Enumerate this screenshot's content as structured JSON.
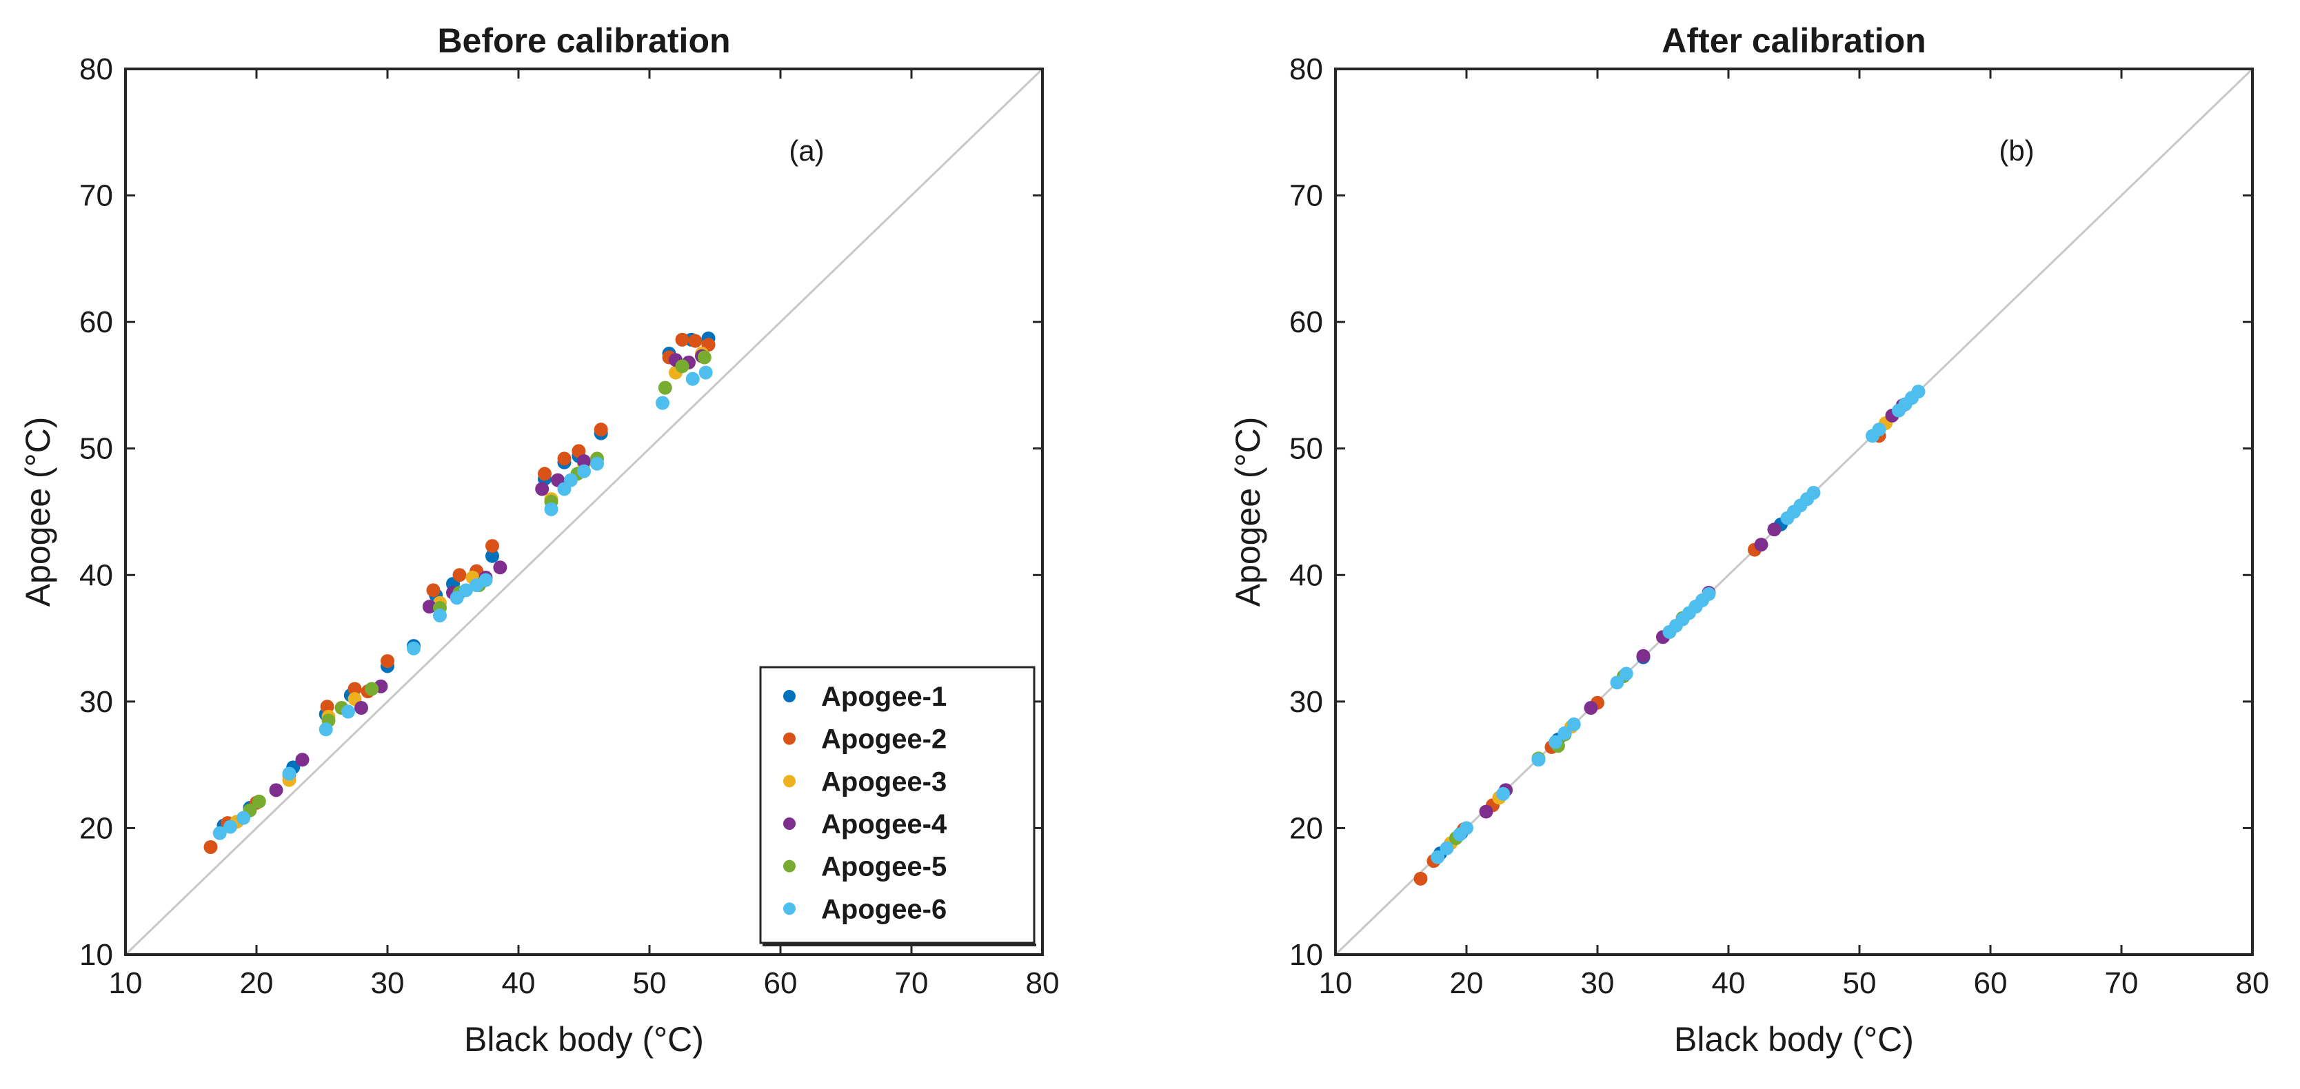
{
  "chart_data": [
    {
      "type": "scatter",
      "title": "Before calibration",
      "panel_label": "(a)",
      "xlabel": "Black body (°C)",
      "ylabel": "Apogee (°C)",
      "xlim": [
        10,
        80
      ],
      "ylim": [
        10,
        80
      ],
      "xticks": [
        10,
        20,
        30,
        40,
        50,
        60,
        70,
        80
      ],
      "yticks": [
        10,
        20,
        30,
        40,
        50,
        60,
        70,
        80
      ],
      "reference_line": "1:1",
      "legend_location": "bottom-right",
      "series": [
        {
          "name": "Apogee-1",
          "color": "#0072BD",
          "points": [
            [
              17.5,
              20.2
            ],
            [
              19.5,
              21.6
            ],
            [
              22.8,
              24.8
            ],
            [
              25.3,
              29.0
            ],
            [
              27.2,
              30.5
            ],
            [
              30.0,
              32.8
            ],
            [
              32.0,
              34.4
            ],
            [
              33.7,
              38.4
            ],
            [
              35.0,
              39.3
            ],
            [
              36.8,
              40.3
            ],
            [
              38.0,
              41.5
            ],
            [
              42.0,
              47.6
            ],
            [
              43.5,
              48.9
            ],
            [
              44.6,
              49.4
            ],
            [
              46.3,
              51.2
            ],
            [
              51.5,
              57.5
            ],
            [
              53.2,
              58.6
            ],
            [
              54.5,
              58.7
            ]
          ]
        },
        {
          "name": "Apogee-2",
          "color": "#D95319",
          "points": [
            [
              16.5,
              18.5
            ],
            [
              17.8,
              20.4
            ],
            [
              20.0,
              22.0
            ],
            [
              22.5,
              24.2
            ],
            [
              25.4,
              29.6
            ],
            [
              27.5,
              31.0
            ],
            [
              28.5,
              30.8
            ],
            [
              30.0,
              33.2
            ],
            [
              33.5,
              38.8
            ],
            [
              35.5,
              40.0
            ],
            [
              36.8,
              40.3
            ],
            [
              38.0,
              42.3
            ],
            [
              42.0,
              48.0
            ],
            [
              43.5,
              49.2
            ],
            [
              44.6,
              49.8
            ],
            [
              46.3,
              51.5
            ],
            [
              51.5,
              57.2
            ],
            [
              52.5,
              58.6
            ],
            [
              53.5,
              58.5
            ],
            [
              54.5,
              58.2
            ]
          ]
        },
        {
          "name": "Apogee-3",
          "color": "#EDB120",
          "points": [
            [
              18.5,
              20.5
            ],
            [
              22.5,
              23.8
            ],
            [
              25.5,
              28.8
            ],
            [
              27.5,
              30.2
            ],
            [
              34.0,
              37.8
            ],
            [
              36.5,
              39.8
            ],
            [
              42.5,
              46.0
            ],
            [
              45.0,
              48.8
            ],
            [
              52.0,
              56.0
            ],
            [
              54.0,
              57.5
            ]
          ]
        },
        {
          "name": "Apogee-4",
          "color": "#7E2F8E",
          "points": [
            [
              21.5,
              23.0
            ],
            [
              23.5,
              25.4
            ],
            [
              28.0,
              29.5
            ],
            [
              29.5,
              31.2
            ],
            [
              33.2,
              37.5
            ],
            [
              35.0,
              38.6
            ],
            [
              37.5,
              39.8
            ],
            [
              38.6,
              40.6
            ],
            [
              41.8,
              46.8
            ],
            [
              43.0,
              47.5
            ],
            [
              45.0,
              49.0
            ],
            [
              52.0,
              57.0
            ],
            [
              53.0,
              56.8
            ],
            [
              54.0,
              57.3
            ]
          ]
        },
        {
          "name": "Apogee-5",
          "color": "#77AC30",
          "points": [
            [
              19.5,
              21.4
            ],
            [
              20.2,
              22.1
            ],
            [
              25.5,
              28.5
            ],
            [
              26.5,
              29.5
            ],
            [
              28.8,
              31.0
            ],
            [
              34.0,
              37.4
            ],
            [
              35.5,
              38.6
            ],
            [
              37.0,
              39.2
            ],
            [
              42.5,
              45.8
            ],
            [
              44.5,
              48.0
            ],
            [
              46.0,
              49.2
            ],
            [
              51.2,
              54.8
            ],
            [
              52.5,
              56.5
            ],
            [
              54.2,
              57.2
            ]
          ]
        },
        {
          "name": "Apogee-6",
          "color": "#4DBEEE",
          "points": [
            [
              17.2,
              19.6
            ],
            [
              18.0,
              20.1
            ],
            [
              19.0,
              20.8
            ],
            [
              22.5,
              24.3
            ],
            [
              25.3,
              27.8
            ],
            [
              27.0,
              29.2
            ],
            [
              32.0,
              34.2
            ],
            [
              34.0,
              36.8
            ],
            [
              35.3,
              38.2
            ],
            [
              36.0,
              38.8
            ],
            [
              36.8,
              39.2
            ],
            [
              37.5,
              39.6
            ],
            [
              42.5,
              45.2
            ],
            [
              43.5,
              46.8
            ],
            [
              44.0,
              47.5
            ],
            [
              45.0,
              48.2
            ],
            [
              46.0,
              48.8
            ],
            [
              51.0,
              53.6
            ],
            [
              53.3,
              55.5
            ],
            [
              54.3,
              56.0
            ]
          ]
        }
      ]
    },
    {
      "type": "scatter",
      "title": "After calibration",
      "panel_label": "(b)",
      "xlabel": "Black body (°C)",
      "ylabel": "Apogee (°C)",
      "xlim": [
        10,
        80
      ],
      "ylim": [
        10,
        80
      ],
      "xticks": [
        10,
        20,
        30,
        40,
        50,
        60,
        70,
        80
      ],
      "yticks": [
        10,
        20,
        30,
        40,
        50,
        60,
        70,
        80
      ],
      "reference_line": "1:1",
      "series": [
        {
          "name": "Apogee-1",
          "color": "#0072BD",
          "points": [
            [
              18.0,
              18.0
            ],
            [
              19.6,
              19.6
            ],
            [
              23.0,
              23.0
            ],
            [
              27.0,
              27.0
            ],
            [
              33.5,
              33.5
            ],
            [
              37.5,
              37.5
            ],
            [
              44.0,
              44.0
            ],
            [
              53.5,
              53.5
            ]
          ]
        },
        {
          "name": "Apogee-2",
          "color": "#D95319",
          "points": [
            [
              16.5,
              16.0
            ],
            [
              17.5,
              17.4
            ],
            [
              19.8,
              19.9
            ],
            [
              22.0,
              21.8
            ],
            [
              26.5,
              26.4
            ],
            [
              30.0,
              29.9
            ],
            [
              42.0,
              42.0
            ],
            [
              51.5,
              51.0
            ]
          ]
        },
        {
          "name": "Apogee-3",
          "color": "#EDB120",
          "points": [
            [
              18.8,
              18.8
            ],
            [
              22.5,
              22.4
            ],
            [
              28.0,
              28.0
            ],
            [
              35.5,
              35.5
            ],
            [
              45.0,
              45.0
            ],
            [
              52.0,
              52.0
            ]
          ]
        },
        {
          "name": "Apogee-4",
          "color": "#7E2F8E",
          "points": [
            [
              21.5,
              21.3
            ],
            [
              23.0,
              23.0
            ],
            [
              29.5,
              29.5
            ],
            [
              33.5,
              33.6
            ],
            [
              35.0,
              35.1
            ],
            [
              38.5,
              38.6
            ],
            [
              42.5,
              42.4
            ],
            [
              43.5,
              43.6
            ],
            [
              52.5,
              52.6
            ],
            [
              53.3,
              53.4
            ]
          ]
        },
        {
          "name": "Apogee-5",
          "color": "#77AC30",
          "points": [
            [
              19.2,
              19.2
            ],
            [
              25.5,
              25.5
            ],
            [
              27.0,
              26.5
            ],
            [
              27.5,
              27.4
            ],
            [
              32.0,
              32.0
            ],
            [
              36.5,
              36.6
            ],
            [
              46.0,
              46.0
            ],
            [
              54.0,
              54.0
            ]
          ]
        },
        {
          "name": "Apogee-6",
          "color": "#4DBEEE",
          "points": [
            [
              17.8,
              17.7
            ],
            [
              18.5,
              18.4
            ],
            [
              19.5,
              19.5
            ],
            [
              20.0,
              20.0
            ],
            [
              22.8,
              22.7
            ],
            [
              25.5,
              25.4
            ],
            [
              26.8,
              26.8
            ],
            [
              27.5,
              27.5
            ],
            [
              28.2,
              28.2
            ],
            [
              31.5,
              31.5
            ],
            [
              32.2,
              32.2
            ],
            [
              35.5,
              35.5
            ],
            [
              36.0,
              36.0
            ],
            [
              36.5,
              36.5
            ],
            [
              37.0,
              37.0
            ],
            [
              37.5,
              37.5
            ],
            [
              38.0,
              38.0
            ],
            [
              38.5,
              38.5
            ],
            [
              44.5,
              44.5
            ],
            [
              45.0,
              45.0
            ],
            [
              45.5,
              45.5
            ],
            [
              46.0,
              46.0
            ],
            [
              46.5,
              46.5
            ],
            [
              51.0,
              51.0
            ],
            [
              51.5,
              51.5
            ],
            [
              53.0,
              53.0
            ],
            [
              53.5,
              53.5
            ],
            [
              54.0,
              54.0
            ],
            [
              54.5,
              54.5
            ]
          ]
        }
      ]
    }
  ]
}
